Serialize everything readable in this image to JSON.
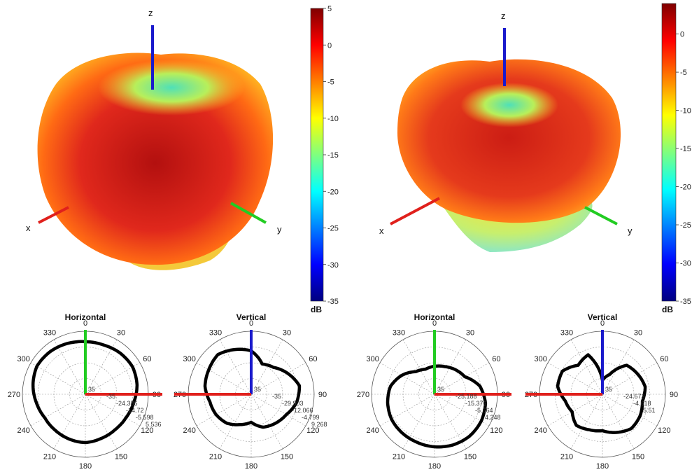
{
  "colors": {
    "x_axis": "#e0201c",
    "y_axis": "#22cc22",
    "z_axis": "#1a1acc",
    "trace": "#000000",
    "grid": "#9a9a9a",
    "colormap": [
      "#00007f",
      "#0000ff",
      "#007fff",
      "#00ffff",
      "#7fff7f",
      "#ffff00",
      "#ff7f00",
      "#ff0000",
      "#7f0000"
    ]
  },
  "chart_data": [
    {
      "type": "surface3d",
      "axis_labels": [
        "x",
        "y",
        "z"
      ],
      "colorbar": {
        "ticks": [
          5,
          0,
          -5,
          -10,
          -15,
          -20,
          -25,
          -30,
          -35
        ],
        "label": "dB",
        "range": [
          -35,
          5
        ]
      }
    },
    {
      "type": "surface3d",
      "axis_labels": [
        "x",
        "y",
        "z"
      ],
      "colorbar": {
        "ticks": [
          0,
          -5,
          -10,
          -15,
          -20,
          -25,
          -30,
          -35
        ],
        "label": "dB",
        "range": [
          -35,
          4
        ]
      }
    },
    {
      "type": "polar",
      "title": "Horizontal",
      "angle_ticks": [
        "0",
        "330",
        "300",
        "270",
        "240",
        "210",
        "180",
        "150",
        "120",
        "90",
        "60",
        "30"
      ],
      "radial_labels": [
        "-35",
        "-24.386",
        "-14.72",
        "-5.598",
        "5.536"
      ],
      "center_label": "35",
      "angles_deg": [
        0,
        20,
        40,
        60,
        80,
        100,
        120,
        140,
        160,
        180,
        200,
        220,
        240,
        260,
        280,
        300,
        320,
        340
      ],
      "radius_dB": [
        2.5,
        3.5,
        4.5,
        5.0,
        3.0,
        0.5,
        -1.5,
        -1.5,
        -1.0,
        -0.5,
        -1.5,
        -2.0,
        -1.5,
        0.0,
        2.5,
        4.0,
        3.5,
        2.5
      ]
    },
    {
      "type": "polar",
      "title": "Vertical",
      "angle_ticks": [
        "0",
        "330",
        "300",
        "270",
        "240",
        "210",
        "180",
        "150",
        "120",
        "90",
        "60",
        "30"
      ],
      "radial_labels": [
        "-35",
        "-29.903",
        "-12.066",
        "-4.799",
        "9.268"
      ],
      "center_label": "35",
      "angles_deg": [
        0,
        20,
        40,
        60,
        80,
        100,
        120,
        140,
        160,
        180,
        200,
        220,
        240,
        260,
        280,
        300,
        320,
        340
      ],
      "radius_dB": [
        -4.0,
        -1.0,
        2.0,
        0.0,
        -1.5,
        -5.0,
        -6.0,
        -8.0,
        -12.0,
        -15.0,
        -10.0,
        -8.0,
        -6.0,
        -2.0,
        0.0,
        -5.0,
        -10.0,
        -12.0
      ]
    },
    {
      "type": "polar",
      "title": "Horizontal",
      "angle_ticks": [
        "0",
        "330",
        "300",
        "270",
        "240",
        "210",
        "180",
        "150",
        "120",
        "90",
        "60",
        "30"
      ],
      "radial_labels": [
        "-25.188",
        "-15.376",
        "-5.664",
        "4.248"
      ],
      "center_label": "35",
      "angles_deg": [
        0,
        20,
        40,
        60,
        80,
        100,
        120,
        140,
        160,
        180,
        200,
        220,
        240,
        260,
        280,
        300,
        320,
        340
      ],
      "radius_dB": [
        -15.0,
        -16.0,
        -14.0,
        -8.0,
        -3.0,
        -1.0,
        0.5,
        1.0,
        1.5,
        2.5,
        3.5,
        4.0,
        3.5,
        2.0,
        -2.0,
        -10.0,
        -12.0,
        -14.0
      ]
    },
    {
      "type": "polar",
      "title": "Vertical",
      "angle_ticks": [
        "0",
        "330",
        "300",
        "270",
        "240",
        "210",
        "180",
        "150",
        "120",
        "90",
        "60",
        "30"
      ],
      "radial_labels": [
        "-24.673",
        "-4.618",
        "5.51"
      ],
      "center_label": "35",
      "angles_deg": [
        0,
        20,
        40,
        60,
        80,
        100,
        120,
        140,
        160,
        180,
        200,
        220,
        240,
        260,
        280,
        300,
        320,
        340
      ],
      "radius_dB": [
        -25.0,
        -5.0,
        -8.0,
        -2.0,
        -2.5,
        -8.0,
        -10.0,
        -6.0,
        -8.0,
        -9.0,
        -6.0,
        -3.0,
        -4.0,
        -6.0,
        -4.0,
        -6.0,
        -8.0,
        -20.0
      ]
    }
  ]
}
